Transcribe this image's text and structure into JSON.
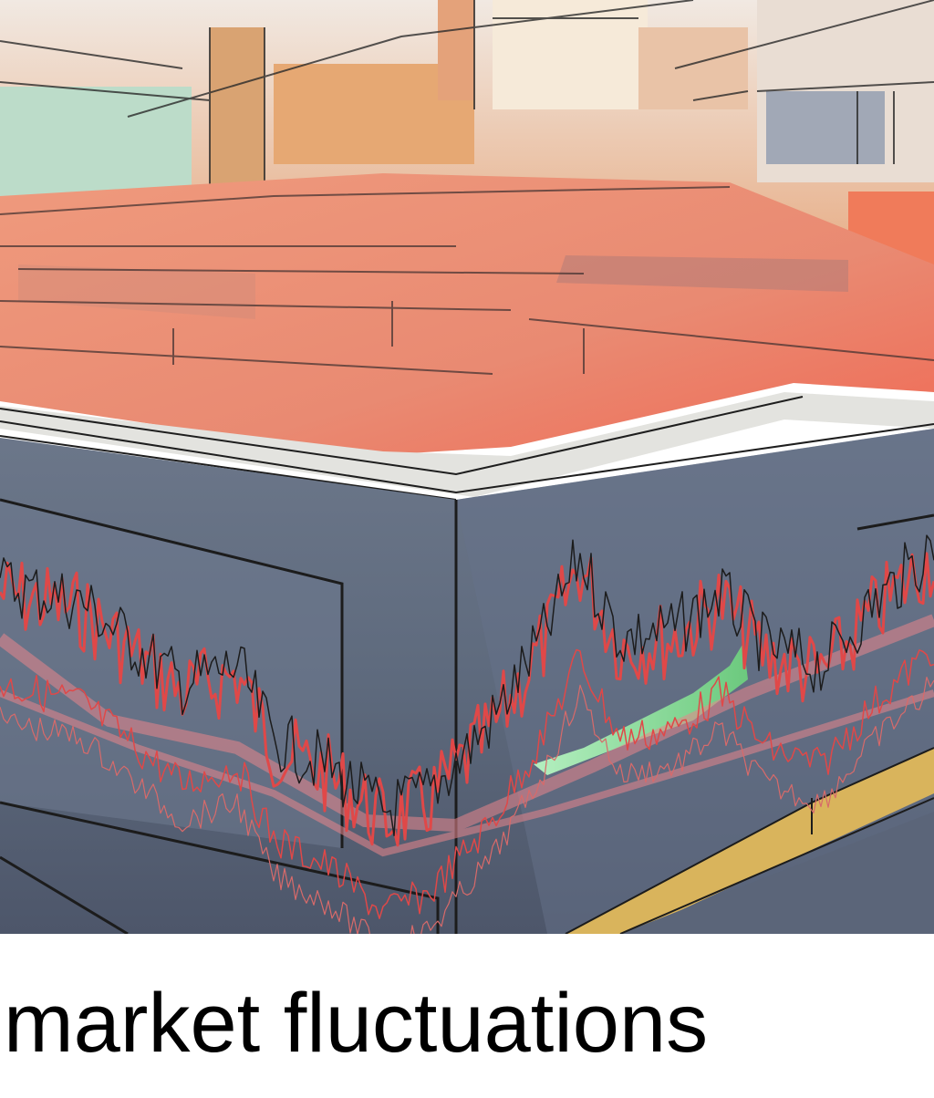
{
  "caption": "market fluctuations",
  "colors": {
    "floor": "#e98a72",
    "wall": "#5e6a7d",
    "chart_line": "#e04848",
    "accent_green": "#7ecf8e",
    "accent_gold": "#d9b45c",
    "ink": "#1a1a1a"
  }
}
